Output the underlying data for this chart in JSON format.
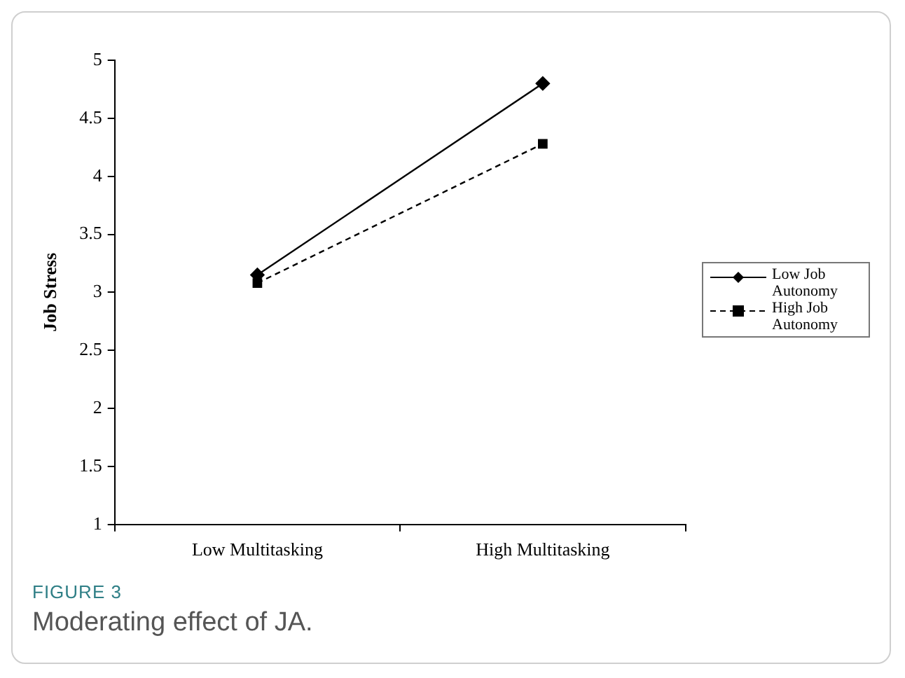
{
  "chart_data": {
    "type": "line",
    "ylabel": "Job Stress",
    "categories": [
      "Low Multitasking",
      "High Multitasking"
    ],
    "series": [
      {
        "name": "Low Job Autonomy",
        "color": "#000000",
        "values": [
          3.15,
          4.8
        ],
        "marker": "diamond",
        "line_style": "solid"
      },
      {
        "name": "High Job Autonomy",
        "color": "#000000",
        "values": [
          3.08,
          4.28
        ],
        "marker": "square",
        "line_style": "dashed"
      }
    ],
    "ylim": [
      1,
      5
    ],
    "yticks": [
      1,
      1.5,
      2,
      2.5,
      3,
      3.5,
      4,
      4.5,
      5
    ],
    "grid": false,
    "legend": "right",
    "annotations": [
      "FIGURE 3",
      "Moderating effect of JA."
    ]
  }
}
